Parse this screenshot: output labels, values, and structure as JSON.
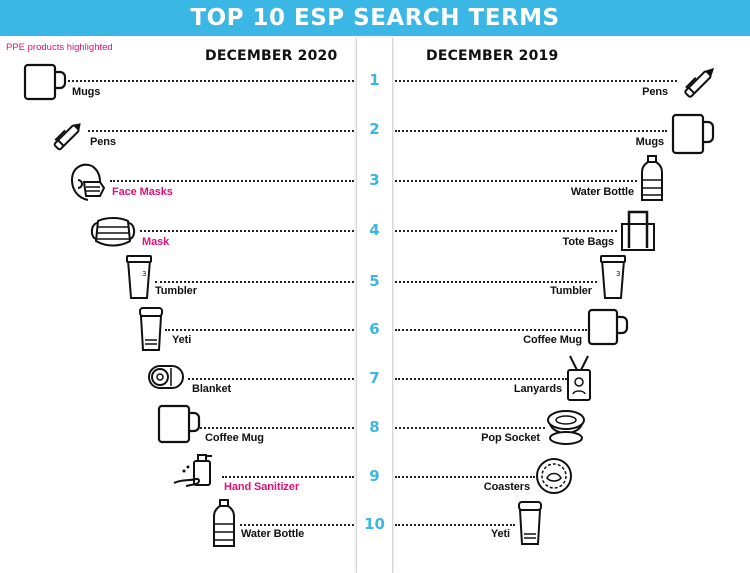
{
  "title": "TOP 10 ESP SEARCH TERMS",
  "note": "PPE products highlighted",
  "columns": {
    "left": "DECEMBER 2020",
    "right": "DECEMBER 2019"
  },
  "ranks": [
    "1",
    "2",
    "3",
    "4",
    "5",
    "6",
    "7",
    "8",
    "9",
    "10"
  ],
  "left_items": [
    {
      "label": "Mugs",
      "icon": "mug-icon",
      "ppe": false
    },
    {
      "label": "Pens",
      "icon": "pen-icon",
      "ppe": false
    },
    {
      "label": "Face Masks",
      "icon": "face-mask-person-icon",
      "ppe": true
    },
    {
      "label": "Mask",
      "icon": "mask-icon",
      "ppe": true
    },
    {
      "label": "Tumbler",
      "icon": "tumbler-icon",
      "ppe": false
    },
    {
      "label": "Yeti",
      "icon": "yeti-cup-icon",
      "ppe": false
    },
    {
      "label": "Blanket",
      "icon": "blanket-icon",
      "ppe": false
    },
    {
      "label": "Coffee Mug",
      "icon": "coffee-mug-icon",
      "ppe": false
    },
    {
      "label": "Hand Sanitizer",
      "icon": "hand-sanitizer-icon",
      "ppe": true
    },
    {
      "label": "Water Bottle",
      "icon": "water-bottle-icon",
      "ppe": false
    }
  ],
  "right_items": [
    {
      "label": "Pens",
      "icon": "pen-icon"
    },
    {
      "label": "Mugs",
      "icon": "mug-icon"
    },
    {
      "label": "Water Bottle",
      "icon": "water-bottle-icon"
    },
    {
      "label": "Tote Bags",
      "icon": "tote-bag-icon"
    },
    {
      "label": "Tumbler",
      "icon": "tumbler-icon"
    },
    {
      "label": "Coffee Mug",
      "icon": "coffee-mug-icon"
    },
    {
      "label": "Lanyards",
      "icon": "lanyard-icon"
    },
    {
      "label": "Pop Socket",
      "icon": "pop-socket-icon"
    },
    {
      "label": "Coasters",
      "icon": "coaster-icon"
    },
    {
      "label": "Yeti",
      "icon": "yeti-cup-icon"
    }
  ],
  "colors": {
    "accent": "#3ab7e4",
    "ppe": "#e0117a",
    "text": "#111111"
  }
}
